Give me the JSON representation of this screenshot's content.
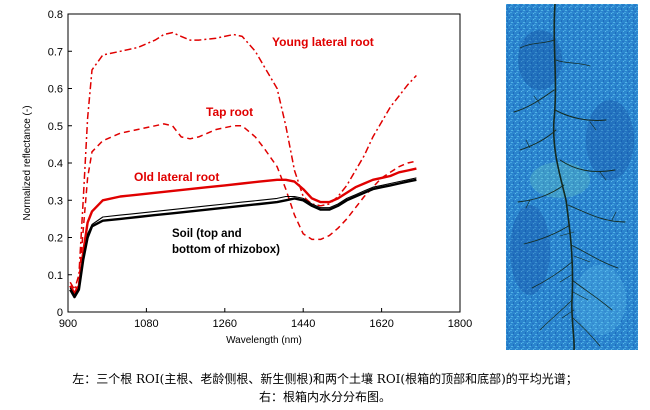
{
  "chart_data": {
    "type": "line",
    "xlabel": "Wavelength (nm)",
    "ylabel": "Normalized reflectance (-)",
    "xlim": [
      900,
      1800
    ],
    "ylim": [
      0,
      0.8
    ],
    "xticks": [
      900,
      1080,
      1260,
      1440,
      1620,
      1800
    ],
    "yticks": [
      0,
      0.1,
      0.2,
      0.3,
      0.4,
      0.5,
      0.6,
      0.7,
      0.8
    ],
    "grid": false,
    "annotations": {
      "young": "Young lateral root",
      "tap": "Tap root",
      "old": "Old lateral root",
      "soil_line1": "Soil (top and",
      "soil_line2": "bottom of rhizobox)"
    },
    "series": [
      {
        "key": "young",
        "color": "#e00000",
        "style": "dashdot",
        "x": [
          905,
          915,
          925,
          935,
          945,
          955,
          980,
          1020,
          1060,
          1100,
          1120,
          1140,
          1160,
          1180,
          1200,
          1240,
          1280,
          1300,
          1330,
          1350,
          1380,
          1400,
          1420,
          1440,
          1460,
          1480,
          1500,
          1520,
          1540,
          1560,
          1580,
          1600,
          1620,
          1640,
          1660,
          1680,
          1700
        ],
        "y": [
          0.08,
          0.06,
          0.1,
          0.3,
          0.52,
          0.65,
          0.69,
          0.7,
          0.71,
          0.73,
          0.745,
          0.75,
          0.74,
          0.73,
          0.73,
          0.735,
          0.745,
          0.74,
          0.7,
          0.66,
          0.6,
          0.5,
          0.38,
          0.31,
          0.29,
          0.285,
          0.29,
          0.31,
          0.34,
          0.38,
          0.42,
          0.47,
          0.51,
          0.55,
          0.58,
          0.61,
          0.635
        ]
      },
      {
        "key": "tap",
        "color": "#e00000",
        "style": "dash",
        "x": [
          905,
          915,
          925,
          935,
          945,
          955,
          980,
          1020,
          1060,
          1100,
          1120,
          1140,
          1160,
          1180,
          1200,
          1240,
          1280,
          1300,
          1330,
          1350,
          1380,
          1400,
          1420,
          1440,
          1460,
          1480,
          1500,
          1520,
          1540,
          1560,
          1580,
          1600,
          1620,
          1640,
          1660,
          1680,
          1700
        ],
        "y": [
          0.07,
          0.05,
          0.08,
          0.22,
          0.36,
          0.43,
          0.46,
          0.48,
          0.49,
          0.5,
          0.505,
          0.5,
          0.47,
          0.465,
          0.47,
          0.49,
          0.5,
          0.5,
          0.47,
          0.44,
          0.39,
          0.33,
          0.26,
          0.21,
          0.195,
          0.195,
          0.205,
          0.225,
          0.25,
          0.28,
          0.31,
          0.335,
          0.36,
          0.375,
          0.39,
          0.4,
          0.405
        ]
      },
      {
        "key": "old",
        "color": "#e00000",
        "style": "solid-thick",
        "x": [
          905,
          915,
          925,
          935,
          945,
          955,
          980,
          1020,
          1060,
          1100,
          1140,
          1180,
          1220,
          1260,
          1300,
          1340,
          1380,
          1400,
          1420,
          1440,
          1460,
          1480,
          1500,
          1520,
          1540,
          1560,
          1580,
          1600,
          1620,
          1640,
          1660,
          1680,
          1700
        ],
        "y": [
          0.07,
          0.05,
          0.07,
          0.16,
          0.24,
          0.27,
          0.3,
          0.31,
          0.315,
          0.32,
          0.325,
          0.33,
          0.335,
          0.34,
          0.345,
          0.35,
          0.355,
          0.355,
          0.35,
          0.33,
          0.305,
          0.295,
          0.295,
          0.305,
          0.32,
          0.335,
          0.345,
          0.355,
          0.36,
          0.365,
          0.375,
          0.38,
          0.385
        ]
      },
      {
        "key": "soil1",
        "color": "#000000",
        "style": "solid-thick",
        "x": [
          905,
          915,
          925,
          935,
          945,
          955,
          980,
          1020,
          1060,
          1100,
          1140,
          1180,
          1220,
          1260,
          1300,
          1340,
          1380,
          1400,
          1420,
          1440,
          1460,
          1480,
          1500,
          1520,
          1540,
          1560,
          1580,
          1600,
          1620,
          1640,
          1660,
          1680,
          1700
        ],
        "y": [
          0.06,
          0.04,
          0.06,
          0.14,
          0.2,
          0.23,
          0.245,
          0.25,
          0.255,
          0.26,
          0.265,
          0.27,
          0.275,
          0.28,
          0.285,
          0.29,
          0.295,
          0.3,
          0.305,
          0.3,
          0.285,
          0.275,
          0.275,
          0.285,
          0.3,
          0.31,
          0.32,
          0.33,
          0.335,
          0.34,
          0.345,
          0.35,
          0.355
        ]
      },
      {
        "key": "soil2",
        "color": "#000000",
        "style": "solid-thin",
        "x": [
          905,
          915,
          925,
          935,
          945,
          955,
          980,
          1020,
          1060,
          1100,
          1140,
          1180,
          1220,
          1260,
          1300,
          1340,
          1380,
          1400,
          1420,
          1440,
          1460,
          1480,
          1500,
          1520,
          1540,
          1560,
          1580,
          1600,
          1620,
          1640,
          1660,
          1680,
          1700
        ],
        "y": [
          0.065,
          0.045,
          0.065,
          0.15,
          0.21,
          0.235,
          0.255,
          0.26,
          0.265,
          0.27,
          0.275,
          0.28,
          0.285,
          0.29,
          0.295,
          0.3,
          0.305,
          0.31,
          0.31,
          0.305,
          0.29,
          0.28,
          0.28,
          0.29,
          0.305,
          0.315,
          0.325,
          0.335,
          0.34,
          0.345,
          0.35,
          0.355,
          0.36
        ]
      }
    ]
  },
  "caption": {
    "line1": "左：三个根 ROI(主根、老龄侧根、新生侧根)和两个土壤 ROI(根箱的顶部和底部)的平均光谱；",
    "line2": "右：根箱内水分分布图。"
  },
  "right_image": {
    "icon": "rhizobox-water-distribution-image",
    "colors": {
      "background": "#2d8fd6",
      "dark": "#0d3f8c",
      "light": "#56c2ee",
      "root": "#1a2a1a"
    }
  }
}
